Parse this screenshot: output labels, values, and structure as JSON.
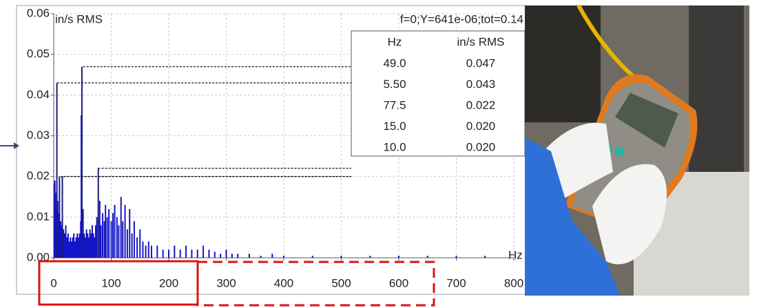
{
  "chart_data": {
    "type": "bar",
    "title": "f=0;Y=641e-06;tot=0.14",
    "y_label": "in/s RMS",
    "x_label": "Hz",
    "color": "#1414c8",
    "grid": true,
    "xlim": [
      0,
      800
    ],
    "xticks": [
      0,
      100,
      200,
      300,
      400,
      500,
      600,
      700,
      800
    ],
    "ylim": [
      0,
      0.06
    ],
    "yticks": [
      {
        "value": 0,
        "label": "0.00"
      },
      0.01,
      0.02,
      0.03,
      0.04,
      0.05,
      0.06
    ],
    "x": [
      1,
      2,
      3,
      4,
      5.5,
      7,
      8.5,
      10,
      12,
      13.5,
      15,
      17,
      19,
      21,
      23,
      25,
      27,
      29,
      31,
      33,
      35,
      37,
      39,
      41,
      43,
      45,
      47,
      48,
      49,
      51,
      53,
      55,
      57,
      59,
      61,
      63,
      65,
      67,
      69,
      71,
      73,
      75,
      77.5,
      80,
      82,
      85,
      88,
      90,
      93,
      96,
      100,
      103,
      106,
      110,
      113,
      117,
      120,
      124,
      128,
      132,
      136,
      140,
      145,
      150,
      155,
      160,
      165,
      170,
      180,
      190,
      200,
      210,
      220,
      230,
      240,
      250,
      260,
      270,
      280,
      290,
      300,
      310,
      320,
      340,
      360,
      380,
      400,
      450,
      500,
      550,
      600,
      650,
      700,
      750
    ],
    "values": [
      0.018,
      0.019,
      0.016,
      0.012,
      0.043,
      0.014,
      0.011,
      0.02,
      0.009,
      0.008,
      0.02,
      0.007,
      0.006,
      0.008,
      0.005,
      0.006,
      0.004,
      0.005,
      0.004,
      0.005,
      0.006,
      0.004,
      0.005,
      0.006,
      0.005,
      0.006,
      0.009,
      0.035,
      0.047,
      0.012,
      0.006,
      0.005,
      0.007,
      0.006,
      0.005,
      0.007,
      0.006,
      0.008,
      0.006,
      0.005,
      0.008,
      0.01,
      0.022,
      0.014,
      0.008,
      0.011,
      0.009,
      0.013,
      0.01,
      0.012,
      0.009,
      0.011,
      0.013,
      0.01,
      0.008,
      0.015,
      0.009,
      0.013,
      0.007,
      0.012,
      0.006,
      0.009,
      0.005,
      0.007,
      0.004,
      0.003,
      0.004,
      0.003,
      0.003,
      0.002,
      0.002,
      0.003,
      0.002,
      0.003,
      0.002,
      0.002,
      0.003,
      0.002,
      0.0015,
      0.001,
      0.002,
      0.001,
      0.001,
      0.001,
      0.0005,
      0.001,
      0.0005,
      0.0005,
      0.0005,
      0.0005,
      0.0005,
      0.0005,
      0.0005,
      0.0005
    ],
    "peak_header": [
      "Hz",
      "in/s RMS"
    ],
    "peaks": {
      "x": [
        49,
        5.5,
        77.5,
        15,
        10
      ],
      "x_labels": [
        "49.0",
        "5.50",
        "77.5",
        "15.0",
        "10.0"
      ],
      "values": [
        0.047,
        0.043,
        0.022,
        0.02,
        0.02
      ],
      "value_labels": [
        "0.047",
        "0.043",
        "0.022",
        "0.020",
        "0.020"
      ]
    }
  }
}
